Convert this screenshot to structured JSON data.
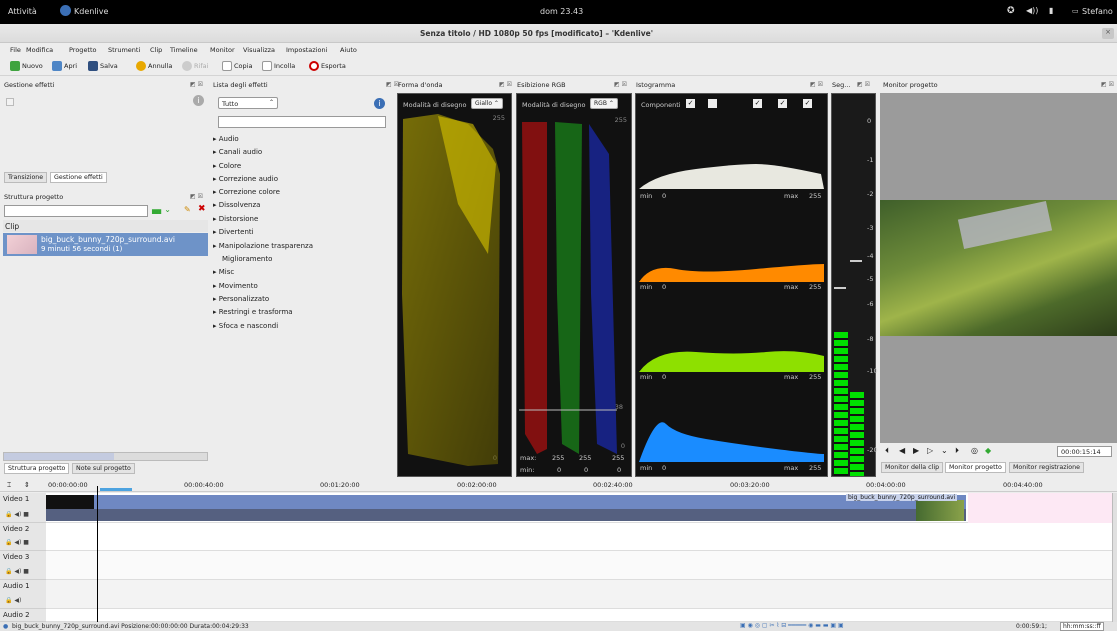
{
  "topbar": {
    "activities": "Attività",
    "app": "Kdenlive",
    "clock": "dom 23.43",
    "user": "Stefano"
  },
  "window": {
    "title": "Senza titolo / HD 1080p 50 fps [modificato] – 'Kdenlive'"
  },
  "menu": [
    "File",
    "Modifica",
    "Progetto",
    "Strumenti",
    "Clip",
    "Timeline",
    "Monitor",
    "Visualizza",
    "Impostazioni",
    "Aiuto"
  ],
  "toolbar": {
    "new": "Nuovo",
    "open": "Apri",
    "save": "Salva",
    "undo": "Annulla",
    "redo": "Rifai",
    "copy": "Copia",
    "paste": "Incolla",
    "render": "Esporta"
  },
  "docks": {
    "effects_manager": "Gestione effetti",
    "effects_list": "Lista degli effetti",
    "waveform": "Forma d'onda",
    "rgb_parade": "Esibizione RGB",
    "histogram": "Istogramma",
    "audio_meter": "Seg...",
    "project_monitor": "Monitor progetto",
    "project_tree": "Struttura progetto"
  },
  "effects_tabs": {
    "transition": "Transizione",
    "effects": "Gestione effetti"
  },
  "effects_filter": "Tutto",
  "effect_categories": [
    "Audio",
    "Canali audio",
    "Colore",
    "Correzione audio",
    "Correzione colore",
    "Dissolvenza",
    "Distorsione",
    "Divertenti",
    "Manipolazione trasparenza",
    "Miglioramento",
    "Misc",
    "Movimento",
    "Personalizzato",
    "Restringi e trasforma",
    "Sfoca e nascondi"
  ],
  "project": {
    "header": "Clip",
    "clip_name": "big_buck_bunny_720p_surround.avi",
    "clip_duration": "9 minuti 56 secondi (1)"
  },
  "project_tabs": {
    "tree": "Struttura progetto",
    "notes": "Note sul progetto"
  },
  "waveform": {
    "mode_label": "Modalità di disegno",
    "mode": "Giallo",
    "max": "255",
    "min": "0"
  },
  "rgb": {
    "mode_label": "Modalità di disegno",
    "mode": "RGB",
    "max": "255",
    "line_val": "38",
    "min": "0",
    "bottom_max": "max:",
    "bottom_min": "min:",
    "ticks_max": [
      "255",
      "255",
      "255"
    ],
    "ticks_min": [
      "0",
      "0",
      "0"
    ]
  },
  "histogram": {
    "components": "Componenti",
    "panels": [
      {
        "min": "min",
        "minv": "0",
        "max": "max",
        "maxv": "255",
        "color": "#e8e8e0"
      },
      {
        "min": "min",
        "minv": "0",
        "max": "max",
        "maxv": "255",
        "color": "#ff8a00"
      },
      {
        "min": "min",
        "minv": "0",
        "max": "max",
        "maxv": "255",
        "color": "#8ee000"
      },
      {
        "min": "min",
        "minv": "0",
        "max": "max",
        "maxv": "255",
        "color": "#1a8cff"
      }
    ]
  },
  "audio_meter": {
    "labels": [
      "0",
      "-1",
      "-2",
      "-3",
      "-4",
      "-5",
      "-6",
      "-8",
      "-10",
      "-20"
    ]
  },
  "monitor": {
    "timecode": "00:00:15:14",
    "tabs": [
      "Monitor della clip",
      "Monitor progetto",
      "Monitor registrazione"
    ]
  },
  "timeline": {
    "ruler": [
      "00:00:00:00",
      "00:00:40:00",
      "00:01:20:00",
      "00:02:00:00",
      "00:02:40:00",
      "00:03:20:00",
      "00:04:00:00",
      "00:04:40:00"
    ],
    "tracks": [
      "Video 1",
      "Video 2",
      "Video 3",
      "Audio 1",
      "Audio 2"
    ],
    "clip_label": "big_buck_bunny_720p_surround.avi"
  },
  "statusbar": {
    "message": "big_buck_bunny_720p_surround.avi Posizione:00:00:00:00 Durata:00:04:29:33",
    "time": "0:00:59:1;",
    "format": "hh:mm:ss::ff"
  }
}
